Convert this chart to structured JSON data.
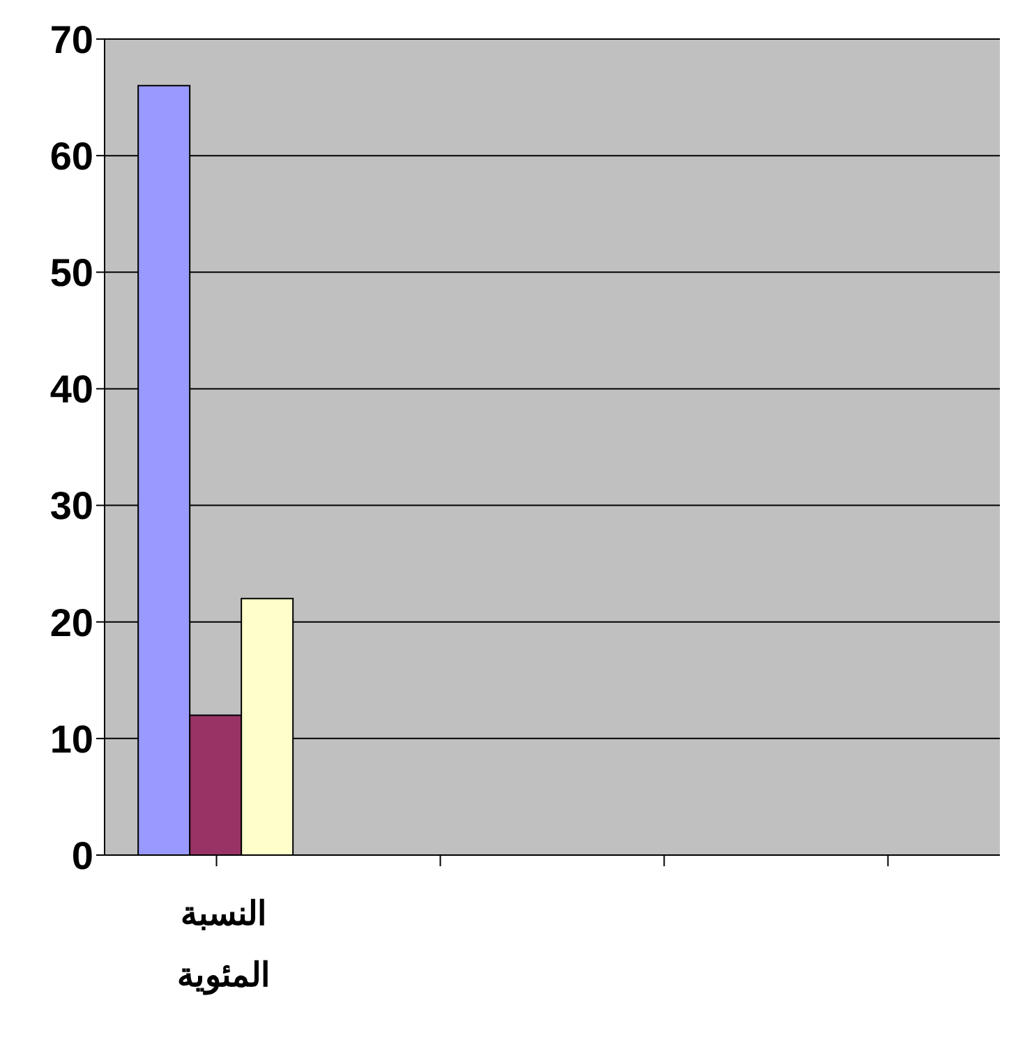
{
  "chart_data": {
    "type": "bar",
    "categories": [
      "النسبة المئوية",
      null,
      null,
      null
    ],
    "series": [
      {
        "color": "#9999ff",
        "values": [
          66,
          null,
          null,
          null
        ]
      },
      {
        "color": "#993366",
        "values": [
          12,
          null,
          null,
          null
        ]
      },
      {
        "color": "#ffffcc",
        "values": [
          22,
          null,
          null,
          null
        ]
      }
    ],
    "ylim": [
      0,
      70
    ],
    "yticks": [
      0,
      10,
      20,
      30,
      40,
      50,
      60,
      70
    ],
    "grid": "y",
    "legend": false
  }
}
